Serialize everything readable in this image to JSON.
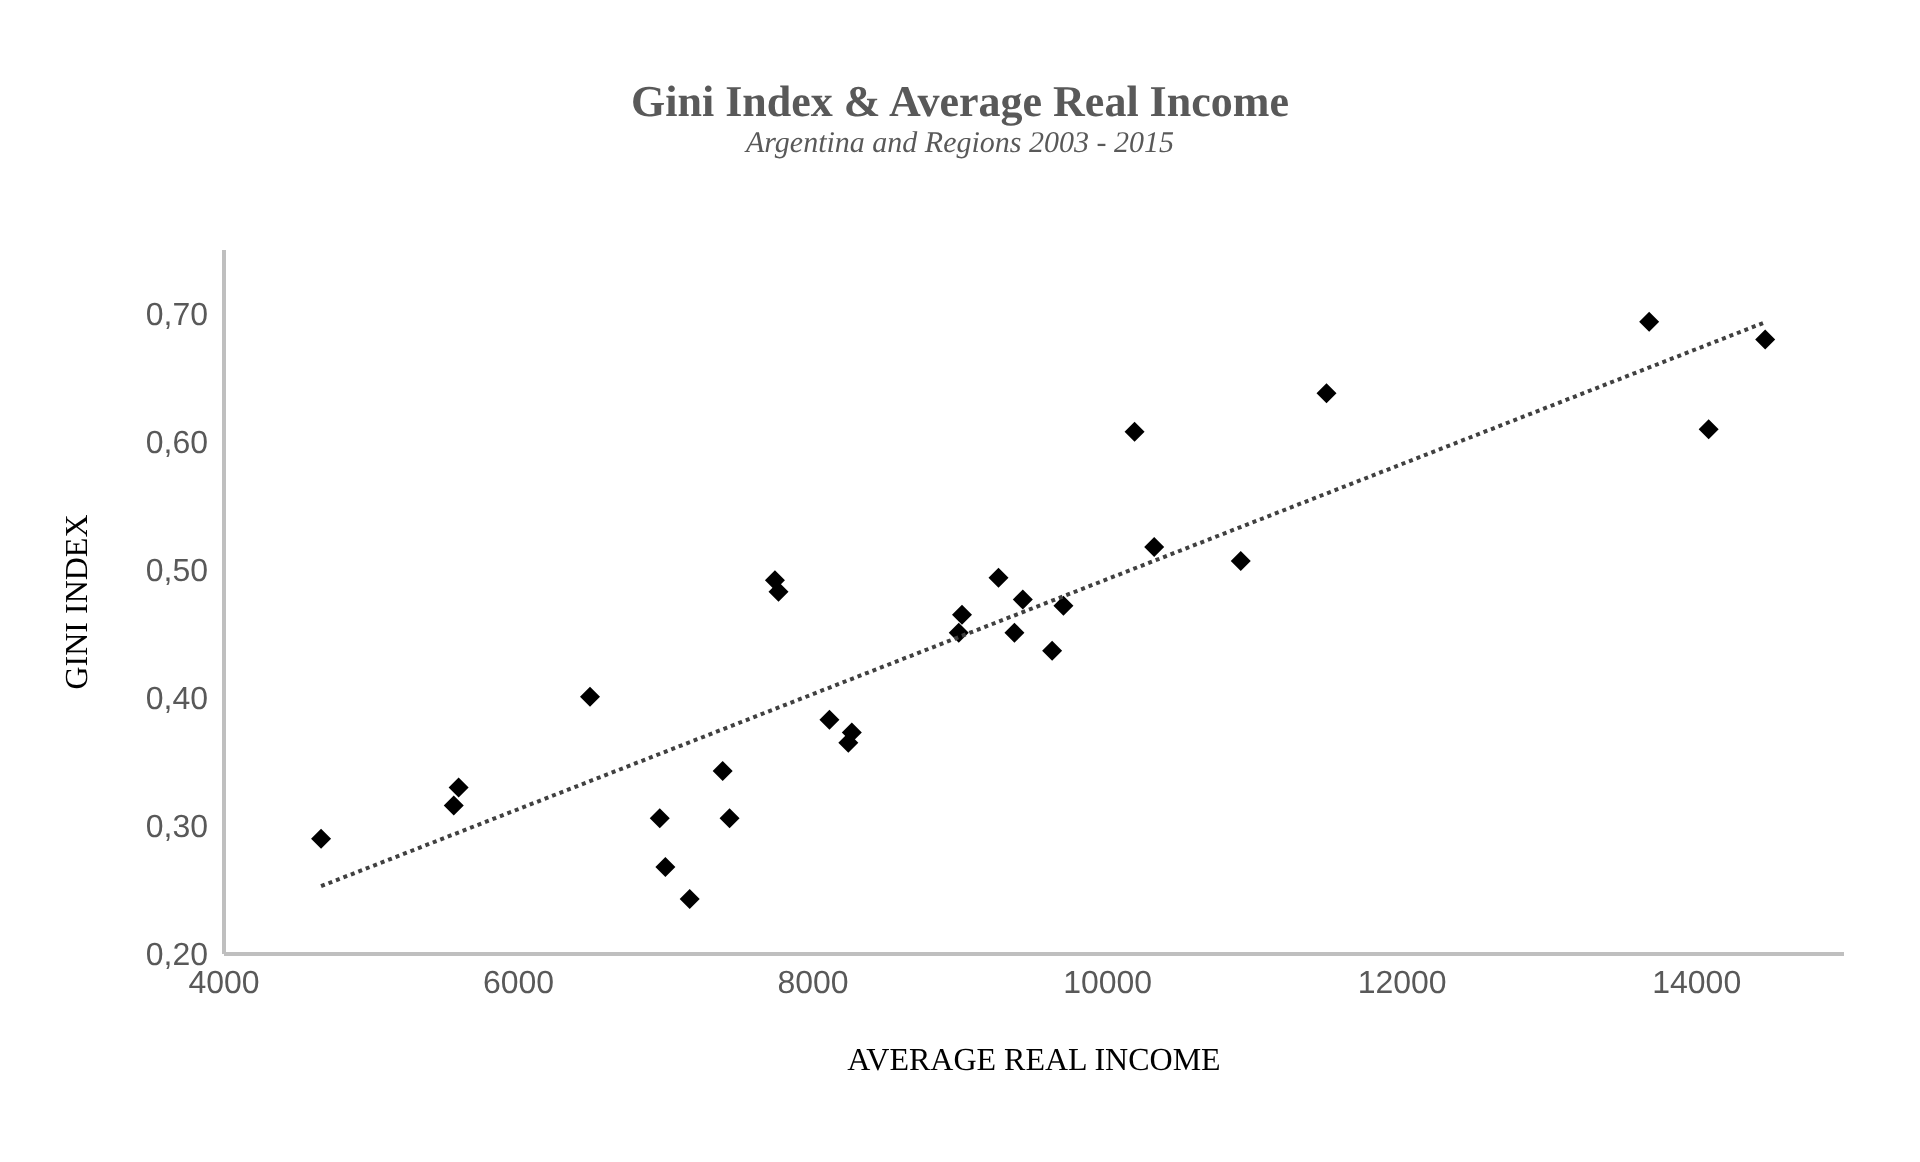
{
  "chart_data": {
    "type": "scatter",
    "title": "Gini Index & Average Real Income",
    "subtitle": "Argentina and Regions 2003 - 2015",
    "xlabel": "AVERAGE  REAL INCOME",
    "ylabel": "GINI INDEX",
    "xlim": [
      4000,
      15000
    ],
    "xticks": [
      4000,
      6000,
      8000,
      10000,
      12000,
      14000
    ],
    "ylim": [
      0.2,
      0.75
    ],
    "yticks": [
      {
        "value": 0.2,
        "label": "0,20"
      },
      {
        "value": 0.3,
        "label": "0,30"
      },
      {
        "value": 0.4,
        "label": "0,40"
      },
      {
        "value": 0.5,
        "label": "0,50"
      },
      {
        "value": 0.6,
        "label": "0,60"
      },
      {
        "value": 0.7,
        "label": "0,70"
      }
    ],
    "series": [
      {
        "marker": "diamond",
        "color": "#000000",
        "x": [
          4659,
          5593,
          5560,
          6485,
          6959,
          6997,
          7162,
          7386,
          7433,
          7741,
          7765,
          8111,
          8263,
          8239,
          9011,
          8989,
          9259,
          9424,
          9367,
          9700,
          9623,
          10183,
          10316,
          10904,
          11486,
          13677,
          14465,
          14081
        ],
        "values": [
          0.29,
          0.33,
          0.316,
          0.401,
          0.306,
          0.268,
          0.243,
          0.343,
          0.306,
          0.492,
          0.483,
          0.383,
          0.373,
          0.365,
          0.465,
          0.451,
          0.494,
          0.477,
          0.451,
          0.472,
          0.437,
          0.608,
          0.518,
          0.507,
          0.638,
          0.694,
          0.68,
          0.61
        ]
      },
      {
        "type": "line",
        "color": "#404040",
        "line_style": "dotted",
        "x": [
          4659,
          14474
        ],
        "values": [
          0.253,
          0.694
        ]
      }
    ]
  }
}
